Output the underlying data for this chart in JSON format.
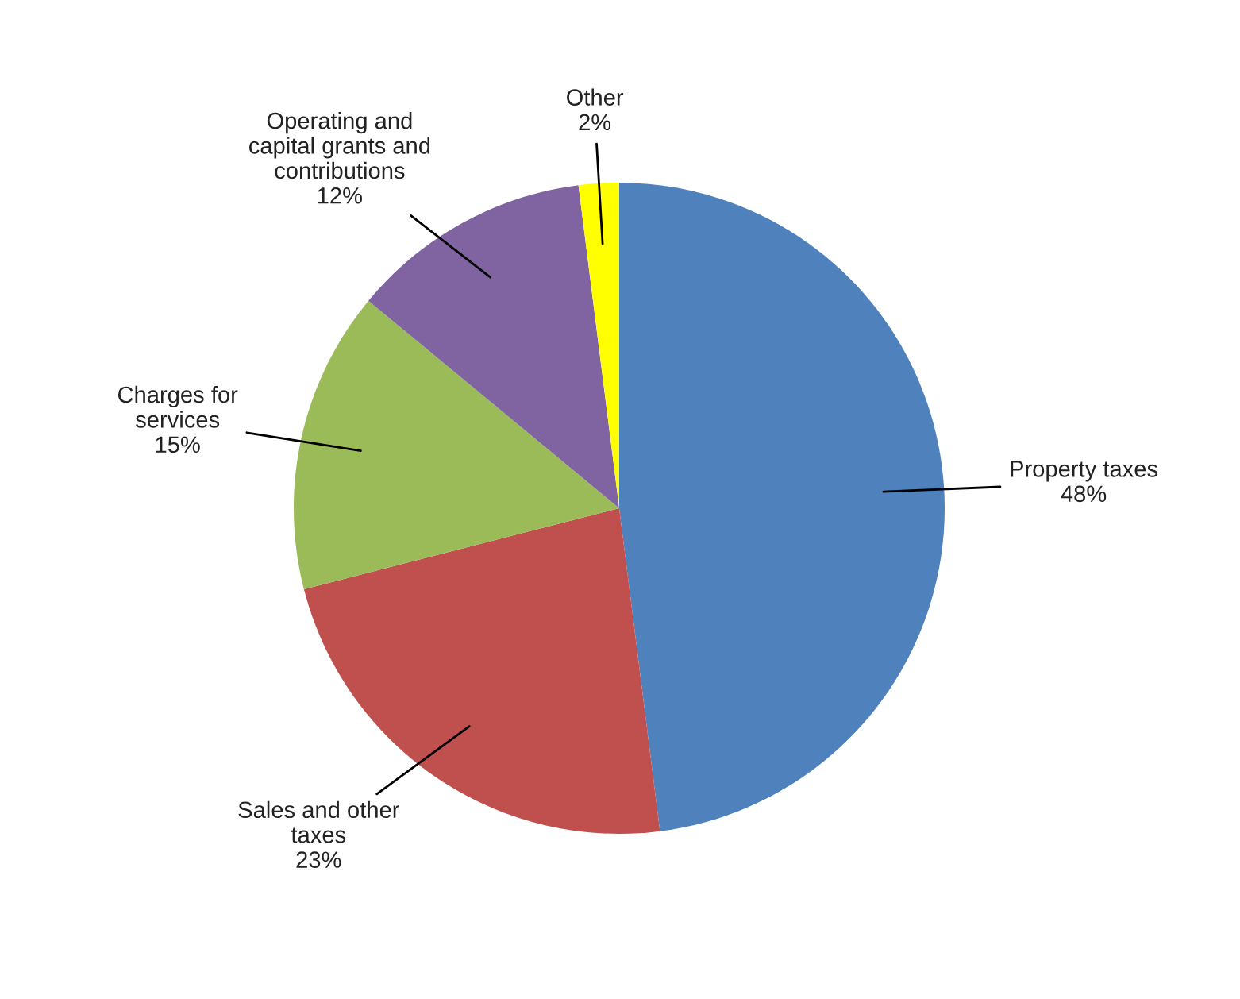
{
  "chart_data": {
    "type": "pie",
    "categories": [
      "Property taxes",
      "Sales and other\ntaxes",
      "Charges for\nservices",
      "Operating and\ncapital grants and\ncontributions",
      "Other"
    ],
    "values": [
      48,
      23,
      15,
      12,
      2
    ],
    "colors": [
      "#4f81bd",
      "#c0504d",
      "#9bbb59",
      "#8064a2",
      "#ffff00"
    ],
    "value_labels": [
      "48%",
      "23%",
      "15%",
      "12%",
      "2%"
    ],
    "legend": false
  }
}
